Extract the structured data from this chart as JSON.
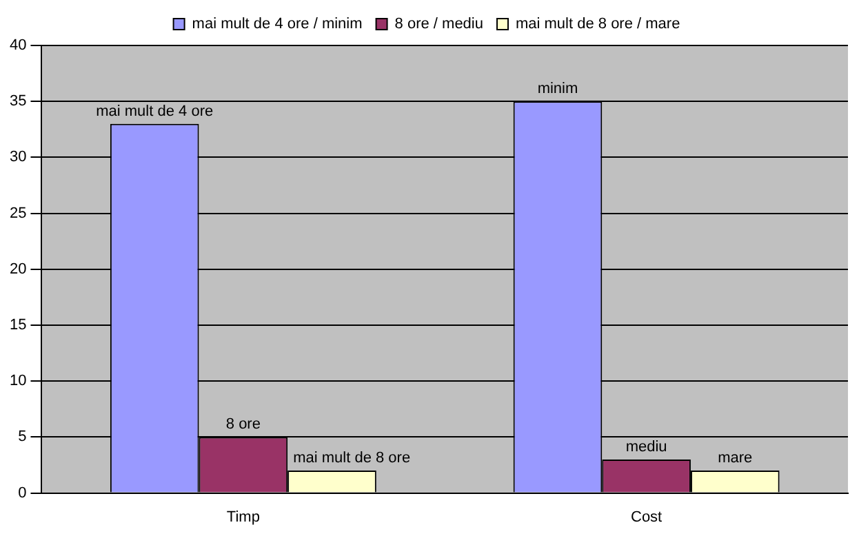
{
  "chart_data": {
    "type": "bar",
    "categories": [
      "Timp",
      "Cost"
    ],
    "series": [
      {
        "name": "mai mult de 4 ore / minim",
        "color": "#9999ff",
        "values": [
          33,
          35
        ]
      },
      {
        "name": "8 ore / mediu",
        "color": "#993366",
        "values": [
          5,
          3
        ]
      },
      {
        "name": "mai mult de 8 ore / mare",
        "color": "#ffffcc",
        "values": [
          2,
          2
        ]
      }
    ],
    "annotations": [
      "mai mult de 4 ore",
      "8 ore",
      "mai mult de 8 ore",
      "minim",
      "mediu",
      "mare"
    ],
    "ylim": [
      0,
      40
    ],
    "yticks": [
      0,
      5,
      10,
      15,
      20,
      25,
      30,
      35,
      40
    ],
    "grid": "y",
    "legend": "top"
  }
}
